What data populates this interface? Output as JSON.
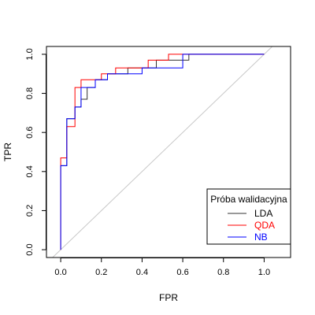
{
  "chart_data": {
    "type": "line",
    "title": "",
    "xlabel": "FPR",
    "ylabel": "TPR",
    "xlim": [
      -0.07,
      1.13
    ],
    "ylim": [
      -0.04,
      1.04
    ],
    "xticks": [
      "0.0",
      "0.2",
      "0.4",
      "0.6",
      "0.8",
      "1.0"
    ],
    "yticks": [
      "0.0",
      "0.2",
      "0.4",
      "0.6",
      "0.8",
      "1.0"
    ],
    "grid": false,
    "legend": {
      "title": "Próba walidacyjna",
      "position": "bottom-right",
      "entries": [
        "LDA",
        "QDA",
        "NB"
      ]
    },
    "reference_line": {
      "x": [
        -0.04,
        1.04
      ],
      "y": [
        -0.04,
        1.04
      ],
      "color": "#c8c8c8"
    },
    "series": [
      {
        "name": "LDA",
        "color": "#333333",
        "x": [
          0.0,
          0.0,
          0.03,
          0.03,
          0.07,
          0.07,
          0.1,
          0.1,
          0.13,
          0.13,
          0.17,
          0.17,
          0.23,
          0.23,
          0.27,
          0.27,
          0.33,
          0.33,
          0.4,
          0.4,
          0.47,
          0.47,
          0.63,
          0.63,
          1.0
        ],
        "y": [
          0.0,
          0.43,
          0.43,
          0.67,
          0.67,
          0.73,
          0.73,
          0.77,
          0.77,
          0.83,
          0.83,
          0.87,
          0.87,
          0.9,
          0.9,
          0.9,
          0.9,
          0.93,
          0.93,
          0.93,
          0.93,
          0.97,
          0.97,
          1.0,
          1.0
        ]
      },
      {
        "name": "QDA",
        "color": "#ff0000",
        "x": [
          0.0,
          0.0,
          0.03,
          0.03,
          0.07,
          0.07,
          0.1,
          0.1,
          0.2,
          0.2,
          0.27,
          0.27,
          0.43,
          0.43,
          0.53,
          0.53,
          1.0
        ],
        "y": [
          0.0,
          0.47,
          0.47,
          0.63,
          0.63,
          0.83,
          0.83,
          0.87,
          0.87,
          0.9,
          0.9,
          0.93,
          0.93,
          0.97,
          0.97,
          1.0,
          1.0
        ]
      },
      {
        "name": "NB",
        "color": "#0000ff",
        "x": [
          0.0,
          0.0,
          0.03,
          0.03,
          0.07,
          0.07,
          0.1,
          0.1,
          0.17,
          0.17,
          0.23,
          0.23,
          0.4,
          0.4,
          0.6,
          0.6,
          1.0
        ],
        "y": [
          0.0,
          0.43,
          0.43,
          0.67,
          0.67,
          0.73,
          0.73,
          0.83,
          0.83,
          0.87,
          0.87,
          0.9,
          0.9,
          0.93,
          0.93,
          1.0,
          1.0
        ]
      }
    ]
  }
}
